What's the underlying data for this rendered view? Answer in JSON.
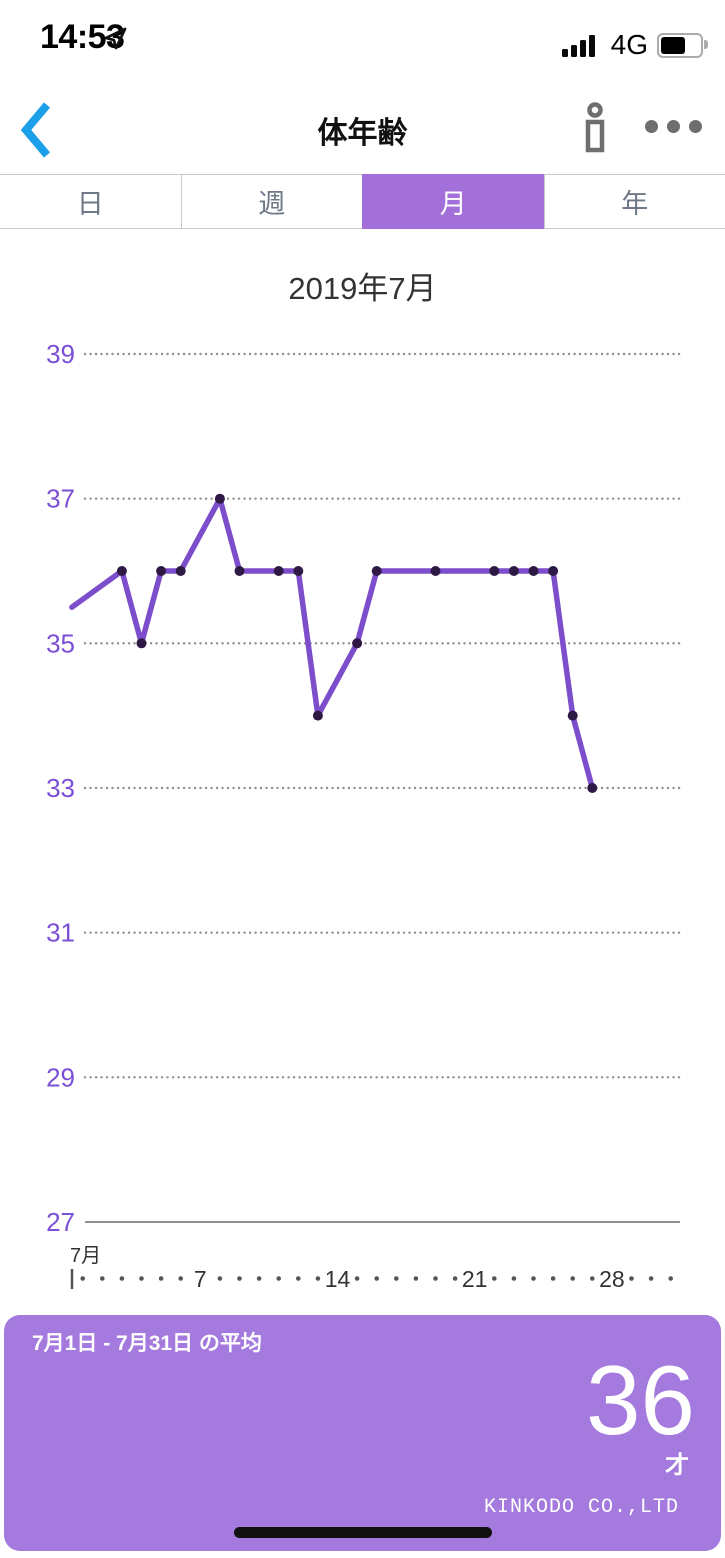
{
  "status_bar": {
    "time": "14:53",
    "network": "4G",
    "icons": [
      "location-arrow",
      "signal-bars",
      "battery"
    ]
  },
  "header": {
    "title": "体年齢",
    "icons": [
      "back-chevron",
      "info",
      "ellipsis-menu"
    ]
  },
  "tabs": [
    {
      "label": "日",
      "selected": false
    },
    {
      "label": "週",
      "selected": false
    },
    {
      "label": "月",
      "selected": true
    },
    {
      "label": "年",
      "selected": false
    }
  ],
  "chart_data": {
    "type": "line",
    "title": "2019年7月",
    "y_axis": {
      "ticks": [
        39,
        37,
        35,
        33,
        31,
        29,
        27
      ],
      "min": 27,
      "max": 39,
      "baseline": 27,
      "label_color": "#7b4fd6"
    },
    "x_axis": {
      "month_label": "7月",
      "day_count": 31,
      "numbered_days": [
        7,
        14,
        21,
        28
      ],
      "boundary_tick": true
    },
    "edge_entry": {
      "day": 0.45,
      "value": 35.5,
      "note": "line enters chart at left edge, no marker"
    },
    "points": [
      {
        "day": 3,
        "value": 36
      },
      {
        "day": 4,
        "value": 35
      },
      {
        "day": 5,
        "value": 36
      },
      {
        "day": 6,
        "value": 36
      },
      {
        "day": 8,
        "value": 37
      },
      {
        "day": 9,
        "value": 36
      },
      {
        "day": 11,
        "value": 36
      },
      {
        "day": 12,
        "value": 36
      },
      {
        "day": 13,
        "value": 34
      },
      {
        "day": 15,
        "value": 35
      },
      {
        "day": 16,
        "value": 36
      },
      {
        "day": 19,
        "value": 36
      },
      {
        "day": 22,
        "value": 36
      },
      {
        "day": 23,
        "value": 36
      },
      {
        "day": 24,
        "value": 36
      },
      {
        "day": 25,
        "value": 36
      },
      {
        "day": 26,
        "value": 34
      },
      {
        "day": 27,
        "value": 33
      }
    ],
    "line_color": "#7d4ecb",
    "point_color": "#2e1945",
    "grid_color": "#8f8f8f",
    "axis_text_color": "#333333",
    "legend": "none",
    "grid": "dotted horizontal lines"
  },
  "summary": {
    "title": "7月1日 - 7月31日 の平均",
    "value": "36",
    "unit": "才",
    "brand": "KINKODO CO.,LTD"
  },
  "colors": {
    "accent": "#a36fd9",
    "panel": "#a57ade",
    "back-blue": "#1b9fe8"
  }
}
